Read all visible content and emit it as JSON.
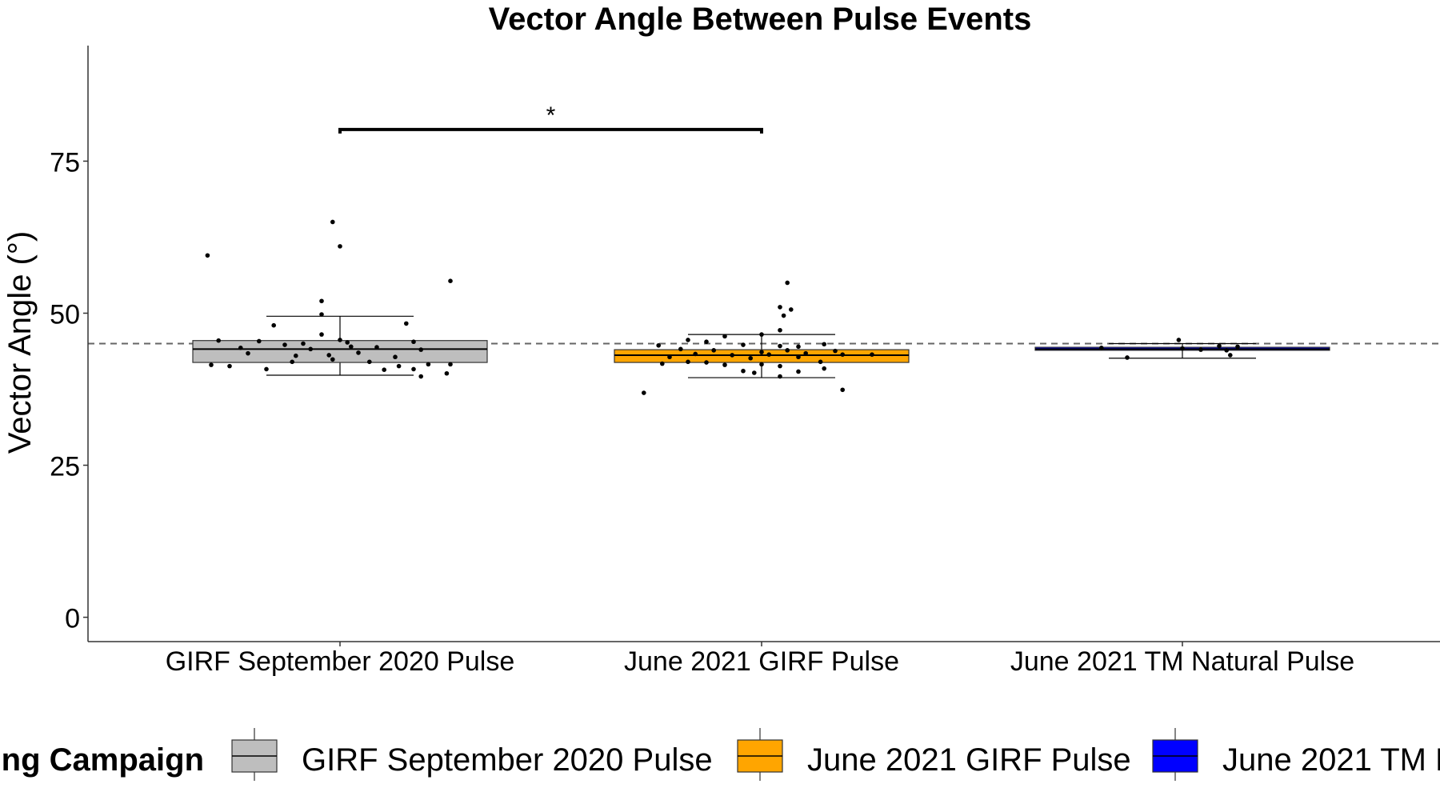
{
  "chart_data": {
    "type": "box",
    "title": "Vector Angle Between Pulse Events",
    "xlabel": "",
    "ylabel": "Vector Angle (°)",
    "ylim": [
      -4,
      94
    ],
    "yticks": [
      0,
      25,
      50,
      75
    ],
    "reference_line": 45,
    "grid": false,
    "legend_title": "ing Campaign",
    "legend_position": "bottom",
    "significance": {
      "from": 0,
      "to": 1,
      "label": "*",
      "y": 80.2
    },
    "categories": [
      "GIRF September 2020 Pulse",
      "June 2021 GIRF Pulse",
      "June 2021 TM Natural Pulse"
    ],
    "series": [
      {
        "name": "GIRF September 2020 Pulse",
        "color": "#BEBEBE",
        "stats": {
          "whisker_low": 39.8,
          "q1": 41.9,
          "median": 44.1,
          "q3": 45.5,
          "whisker_high": 49.5
        },
        "points": [
          {
            "x": -0.36,
            "y": 59.5
          },
          {
            "x": -0.02,
            "y": 65.0
          },
          {
            "x": 0.0,
            "y": 61.0
          },
          {
            "x": 0.3,
            "y": 55.3
          },
          {
            "x": -0.05,
            "y": 52.0
          },
          {
            "x": -0.05,
            "y": 49.8
          },
          {
            "x": -0.18,
            "y": 48.0
          },
          {
            "x": 0.18,
            "y": 48.3
          },
          {
            "x": -0.33,
            "y": 45.5
          },
          {
            "x": -0.22,
            "y": 45.4
          },
          {
            "x": -0.1,
            "y": 45.0
          },
          {
            "x": -0.05,
            "y": 46.5
          },
          {
            "x": 0.0,
            "y": 45.6
          },
          {
            "x": 0.02,
            "y": 45.2
          },
          {
            "x": 0.2,
            "y": 45.3
          },
          {
            "x": -0.27,
            "y": 44.3
          },
          {
            "x": -0.15,
            "y": 44.8
          },
          {
            "x": -0.08,
            "y": 44.1
          },
          {
            "x": 0.03,
            "y": 44.5
          },
          {
            "x": 0.1,
            "y": 44.4
          },
          {
            "x": 0.22,
            "y": 44.0
          },
          {
            "x": -0.25,
            "y": 43.4
          },
          {
            "x": -0.12,
            "y": 43.0
          },
          {
            "x": -0.03,
            "y": 43.1
          },
          {
            "x": 0.05,
            "y": 43.5
          },
          {
            "x": 0.15,
            "y": 42.8
          },
          {
            "x": -0.35,
            "y": 41.5
          },
          {
            "x": -0.3,
            "y": 41.3
          },
          {
            "x": -0.13,
            "y": 42.0
          },
          {
            "x": -0.02,
            "y": 42.4
          },
          {
            "x": 0.08,
            "y": 42.0
          },
          {
            "x": 0.16,
            "y": 41.3
          },
          {
            "x": 0.24,
            "y": 41.6
          },
          {
            "x": 0.3,
            "y": 41.6
          },
          {
            "x": -0.2,
            "y": 40.8
          },
          {
            "x": 0.12,
            "y": 40.7
          },
          {
            "x": 0.2,
            "y": 40.8
          },
          {
            "x": 0.29,
            "y": 40.1
          },
          {
            "x": 0.22,
            "y": 39.6
          }
        ]
      },
      {
        "name": "June 2021 GIRF Pulse",
        "color": "#FFA500",
        "stats": {
          "whisker_low": 39.4,
          "q1": 41.9,
          "median": 43.1,
          "q3": 44.0,
          "whisker_high": 46.5
        },
        "points": [
          {
            "x": 0.07,
            "y": 55.0
          },
          {
            "x": 0.05,
            "y": 51.0
          },
          {
            "x": 0.08,
            "y": 50.6
          },
          {
            "x": 0.06,
            "y": 49.6
          },
          {
            "x": 0.05,
            "y": 47.2
          },
          {
            "x": 0.0,
            "y": 46.5
          },
          {
            "x": -0.1,
            "y": 46.2
          },
          {
            "x": -0.2,
            "y": 45.6
          },
          {
            "x": -0.15,
            "y": 45.3
          },
          {
            "x": -0.28,
            "y": 44.7
          },
          {
            "x": -0.05,
            "y": 44.8
          },
          {
            "x": 0.05,
            "y": 44.6
          },
          {
            "x": 0.1,
            "y": 44.5
          },
          {
            "x": 0.17,
            "y": 44.9
          },
          {
            "x": -0.22,
            "y": 44.1
          },
          {
            "x": -0.13,
            "y": 43.9
          },
          {
            "x": 0.0,
            "y": 43.6
          },
          {
            "x": 0.07,
            "y": 43.9
          },
          {
            "x": 0.2,
            "y": 43.8
          },
          {
            "x": -0.18,
            "y": 43.3
          },
          {
            "x": -0.08,
            "y": 43.1
          },
          {
            "x": 0.02,
            "y": 43.2
          },
          {
            "x": 0.12,
            "y": 43.4
          },
          {
            "x": 0.22,
            "y": 43.2
          },
          {
            "x": 0.3,
            "y": 43.2
          },
          {
            "x": -0.25,
            "y": 42.8
          },
          {
            "x": -0.03,
            "y": 42.6
          },
          {
            "x": 0.1,
            "y": 42.8
          },
          {
            "x": -0.2,
            "y": 42.0
          },
          {
            "x": -0.1,
            "y": 41.5
          },
          {
            "x": 0.05,
            "y": 41.3
          },
          {
            "x": 0.16,
            "y": 42.0
          },
          {
            "x": -0.27,
            "y": 41.7
          },
          {
            "x": -0.15,
            "y": 41.9
          },
          {
            "x": 0.0,
            "y": 41.6
          },
          {
            "x": -0.05,
            "y": 40.5
          },
          {
            "x": 0.1,
            "y": 40.4
          },
          {
            "x": -0.02,
            "y": 40.2
          },
          {
            "x": 0.17,
            "y": 40.9
          },
          {
            "x": 0.05,
            "y": 39.6
          },
          {
            "x": 0.22,
            "y": 37.4
          },
          {
            "x": -0.32,
            "y": 36.9
          }
        ]
      },
      {
        "name": "June 2021 TM Natural Pulse",
        "color": "#0000FF",
        "stats": {
          "whisker_low": 42.6,
          "q1": 43.9,
          "median": 44.1,
          "q3": 44.4,
          "whisker_high": 45.0
        },
        "points": [
          {
            "x": -0.01,
            "y": 45.6
          },
          {
            "x": -0.22,
            "y": 44.3
          },
          {
            "x": 0.1,
            "y": 44.6
          },
          {
            "x": 0.15,
            "y": 44.5
          },
          {
            "x": 0.0,
            "y": 44.2
          },
          {
            "x": 0.12,
            "y": 43.9
          },
          {
            "x": 0.05,
            "y": 44.0
          },
          {
            "x": -0.15,
            "y": 42.7
          },
          {
            "x": 0.13,
            "y": 43.1
          }
        ]
      }
    ]
  }
}
